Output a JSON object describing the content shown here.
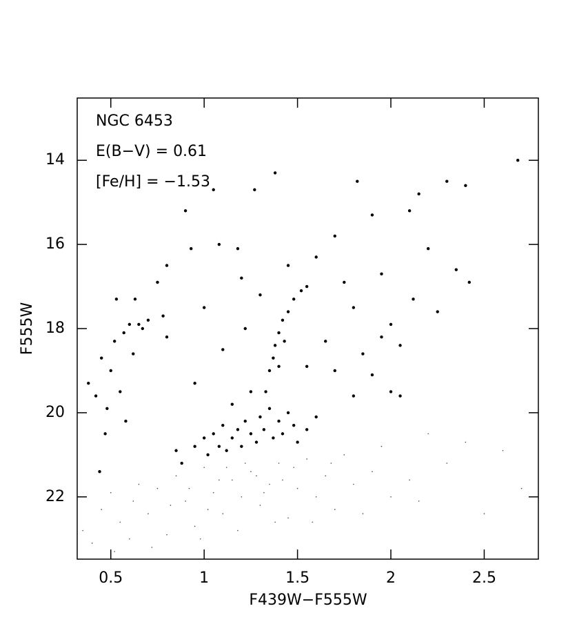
{
  "chart_data": {
    "type": "scatter",
    "annotations": [
      "NGC 6453",
      "E(B−V) = 0.61",
      "[Fe/H] = −1.53"
    ],
    "xlabel": "F439W−F555W",
    "ylabel": "F555W",
    "xlim": [
      0.32,
      2.79
    ],
    "ylim": [
      23.48,
      12.52
    ],
    "invert_y": true,
    "xticks": [
      0.5,
      1,
      1.5,
      2,
      2.5
    ],
    "yticks": [
      14,
      16,
      18,
      20,
      22
    ],
    "grid": false,
    "series": [
      {
        "color": "#000000",
        "x": [
          0.38,
          0.42,
          0.45,
          0.47,
          0.5,
          0.52,
          0.53,
          0.55,
          0.57,
          0.6,
          0.62,
          0.63,
          0.65,
          0.67,
          0.7,
          0.58,
          0.48,
          0.44,
          0.78,
          0.8,
          0.9,
          0.93,
          1.05,
          1.38,
          1.27,
          1.82,
          2.68,
          0.95,
          1.0,
          1.02,
          1.05,
          1.08,
          1.1,
          1.12,
          1.15,
          1.18,
          1.2,
          1.22,
          1.25,
          1.28,
          1.3,
          1.32,
          1.35,
          1.37,
          1.4,
          1.42,
          1.45,
          1.48,
          1.5,
          1.55,
          1.6,
          1.15,
          1.25,
          0.88,
          0.85,
          1.33,
          1.35,
          1.37,
          1.38,
          1.4,
          1.42,
          1.45,
          1.48,
          1.52,
          1.55,
          1.4,
          1.43,
          1.6,
          1.7,
          1.75,
          1.8,
          1.85,
          1.9,
          1.95,
          2.0,
          2.05,
          2.1,
          2.12,
          2.15,
          2.2,
          2.25,
          2.3,
          2.35,
          2.4,
          2.42,
          1.7,
          1.8,
          1.9,
          2.0,
          2.05,
          1.65,
          1.55,
          1.95,
          1.2,
          1.3,
          1.0,
          0.95,
          1.1,
          1.22,
          0.75,
          0.8,
          1.08,
          1.18,
          1.45
        ],
        "values": [
          19.3,
          19.6,
          18.7,
          20.5,
          19.0,
          18.3,
          17.3,
          19.5,
          18.1,
          17.9,
          18.6,
          17.3,
          17.9,
          18.0,
          17.8,
          20.2,
          19.9,
          21.4,
          17.7,
          18.2,
          15.2,
          16.1,
          14.7,
          14.3,
          14.7,
          14.5,
          14.0,
          20.8,
          20.6,
          21.0,
          20.5,
          20.8,
          20.3,
          20.9,
          20.6,
          20.4,
          20.8,
          20.2,
          20.5,
          20.7,
          20.1,
          20.4,
          19.9,
          20.6,
          20.2,
          20.5,
          20.0,
          20.3,
          20.7,
          20.4,
          20.1,
          19.8,
          19.5,
          21.2,
          20.9,
          19.5,
          19.0,
          18.7,
          18.4,
          18.1,
          17.8,
          17.6,
          17.3,
          17.1,
          17.0,
          18.9,
          18.3,
          16.3,
          15.8,
          16.9,
          17.5,
          18.6,
          15.3,
          16.7,
          17.9,
          18.4,
          15.2,
          17.3,
          14.8,
          16.1,
          17.6,
          14.5,
          16.6,
          14.6,
          16.9,
          19.0,
          19.6,
          19.1,
          19.5,
          19.6,
          18.3,
          18.9,
          18.2,
          16.8,
          17.2,
          17.5,
          19.3,
          18.5,
          18.0,
          16.9,
          16.5,
          16.0,
          16.1,
          16.5
        ]
      },
      {
        "color": "#444444",
        "x": [
          0.35,
          0.4,
          0.45,
          0.5,
          0.55,
          0.6,
          0.65,
          0.7,
          0.75,
          0.8,
          0.85,
          0.9,
          0.95,
          1.0,
          1.05,
          1.1,
          1.15,
          1.2,
          1.25,
          1.3,
          1.35,
          1.4,
          1.45,
          1.5,
          1.55,
          1.6,
          1.65,
          1.7,
          1.75,
          1.8,
          1.85,
          1.9,
          1.95,
          2.0,
          2.1,
          2.2,
          2.3,
          2.4,
          2.5,
          2.6,
          2.7,
          1.12,
          1.28,
          1.38,
          0.98,
          1.18,
          1.42,
          1.02,
          0.82,
          0.72,
          0.62,
          1.58,
          1.68,
          1.22,
          1.32,
          1.08,
          0.92,
          1.48,
          0.52,
          2.15
        ],
        "values": [
          22.8,
          23.1,
          22.3,
          21.9,
          22.6,
          23.0,
          21.7,
          22.4,
          21.8,
          22.9,
          21.5,
          22.1,
          22.7,
          21.3,
          21.9,
          22.4,
          21.6,
          22.0,
          21.4,
          22.2,
          21.7,
          21.2,
          22.5,
          21.8,
          21.1,
          22.0,
          21.5,
          22.3,
          21.0,
          21.7,
          22.4,
          21.4,
          20.8,
          22.0,
          21.6,
          20.5,
          21.2,
          20.7,
          22.4,
          20.9,
          21.8,
          21.3,
          21.5,
          22.6,
          23.0,
          22.8,
          21.6,
          22.3,
          22.2,
          23.2,
          22.1,
          22.6,
          21.2,
          21.2,
          21.9,
          21.6,
          21.8,
          21.3,
          23.3,
          22.1
        ]
      }
    ]
  }
}
